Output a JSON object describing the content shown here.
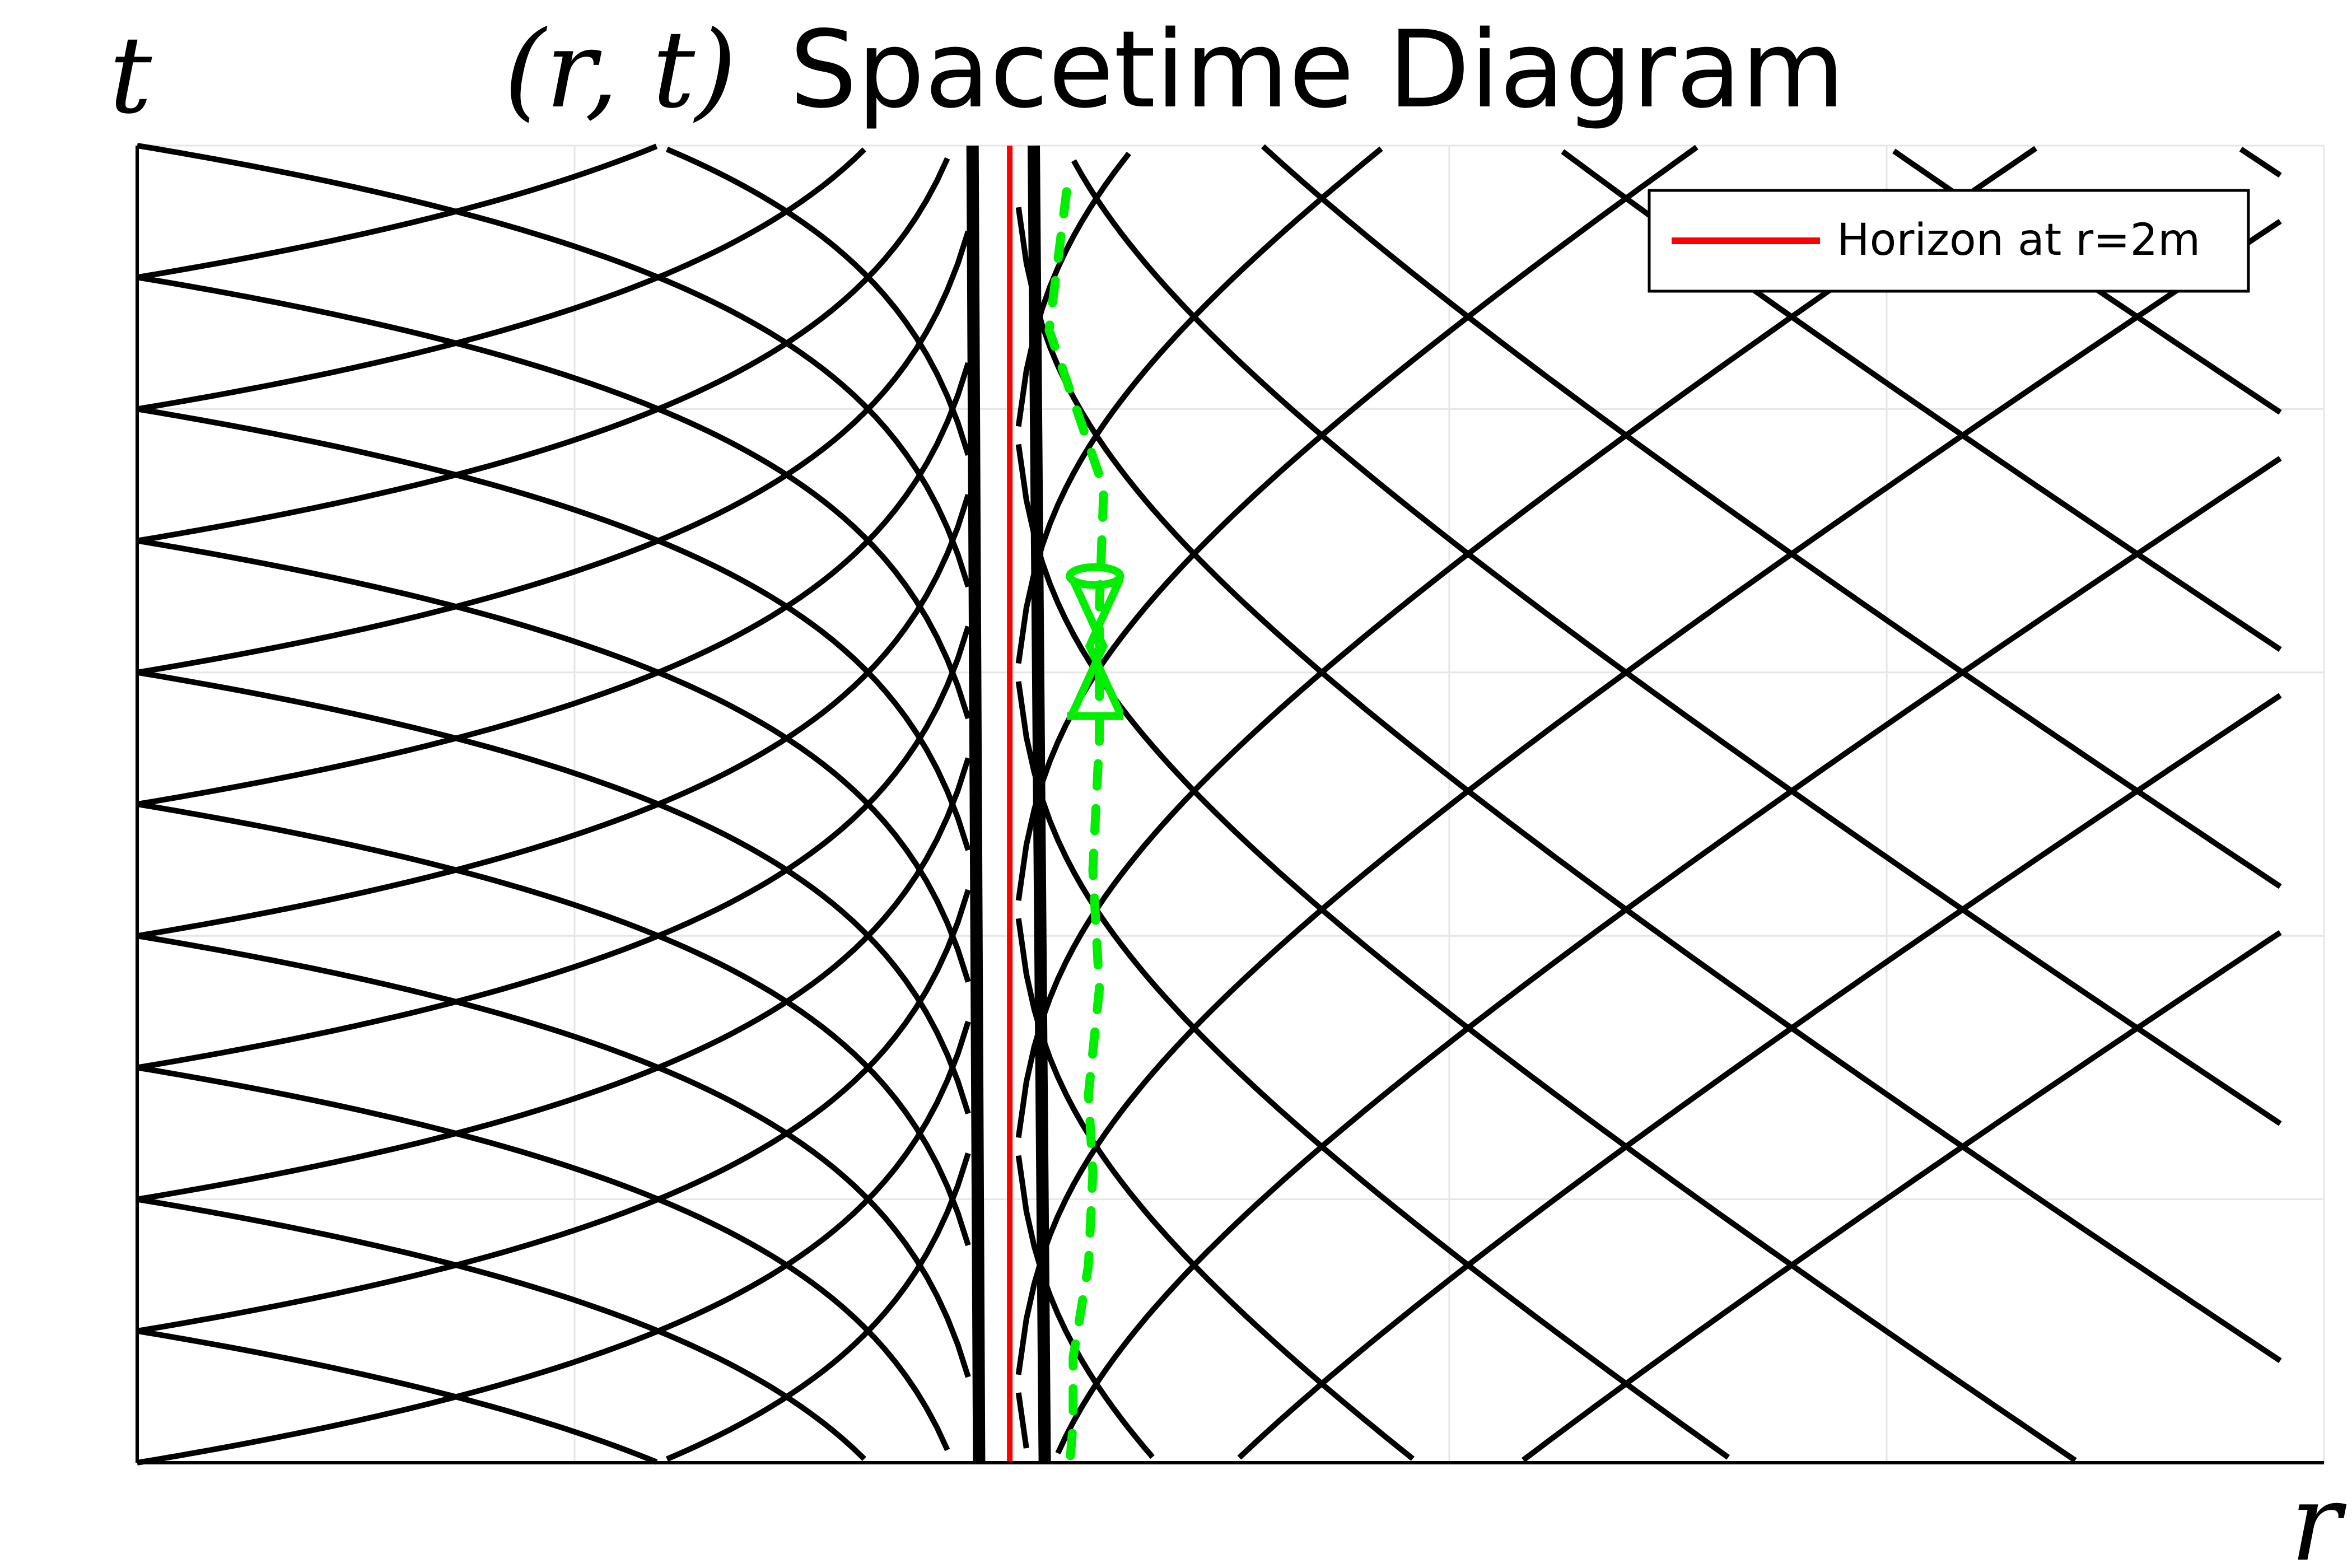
{
  "title": {
    "math": "(r, t)",
    "text": "Spacetime Diagram"
  },
  "axes": {
    "xlabel": "r",
    "ylabel": "t",
    "xlim": [
      0,
      1
    ],
    "ylim": [
      0,
      1
    ],
    "grid": true,
    "tick_labels_shown": false
  },
  "legend": {
    "position": "top-right",
    "entries": [
      {
        "label": "Horizon at r=2m",
        "color": "#ff0000"
      }
    ]
  },
  "colors": {
    "curves": "#000000",
    "horizon": "#ff0000",
    "worldline": "#00ee00",
    "grid": "#e6e6e6"
  },
  "chart_data": {
    "type": "line",
    "x_domain": [
      0,
      1
    ],
    "y_domain": [
      0,
      1
    ],
    "horizon_r": 0.399,
    "families": [
      {
        "name": "",
        "kind": "interior_arc",
        "apexes": [
          {
            "t_top": 0.9,
            "t_crossing": 0.9
          },
          {
            "t_top": 0.7,
            "t_crossing": 0.7
          },
          {
            "t_top": 0.5,
            "t_crossing": 0.5
          },
          {
            "t_top": 0.3,
            "t_crossing": 0.3
          },
          {
            "t_top": 0.1,
            "t_crossing": 0.1
          }
        ]
      }
    ],
    "curves": [
      {
        "kind": "vertical",
        "r": [
          0.385,
          0.382
        ],
        "t": [
          0,
          1
        ],
        "weight": "heavy"
      },
      {
        "kind": "vertical",
        "r": [
          0.415,
          0.41
        ],
        "t": [
          0,
          1
        ],
        "weight": "heavy"
      },
      {
        "kind": "horizon",
        "r": [
          0.399,
          0.399
        ],
        "t": [
          0,
          1
        ]
      }
    ],
    "worldline": {
      "style": "dashed",
      "points": [
        [
          0.425,
          0.035
        ],
        [
          0.417,
          0.14
        ],
        [
          0.442,
          0.26
        ],
        [
          0.44,
          0.35
        ],
        [
          0.44,
          0.45
        ],
        [
          0.437,
          0.55
        ],
        [
          0.44,
          0.64
        ],
        [
          0.435,
          0.72
        ],
        [
          0.437,
          0.78
        ],
        [
          0.435,
          0.85
        ],
        [
          0.428,
          0.92
        ],
        [
          0.428,
          0.97
        ],
        [
          0.426,
          1.01
        ]
      ],
      "light_cone": {
        "r": 0.438,
        "t": 0.62
      }
    }
  }
}
